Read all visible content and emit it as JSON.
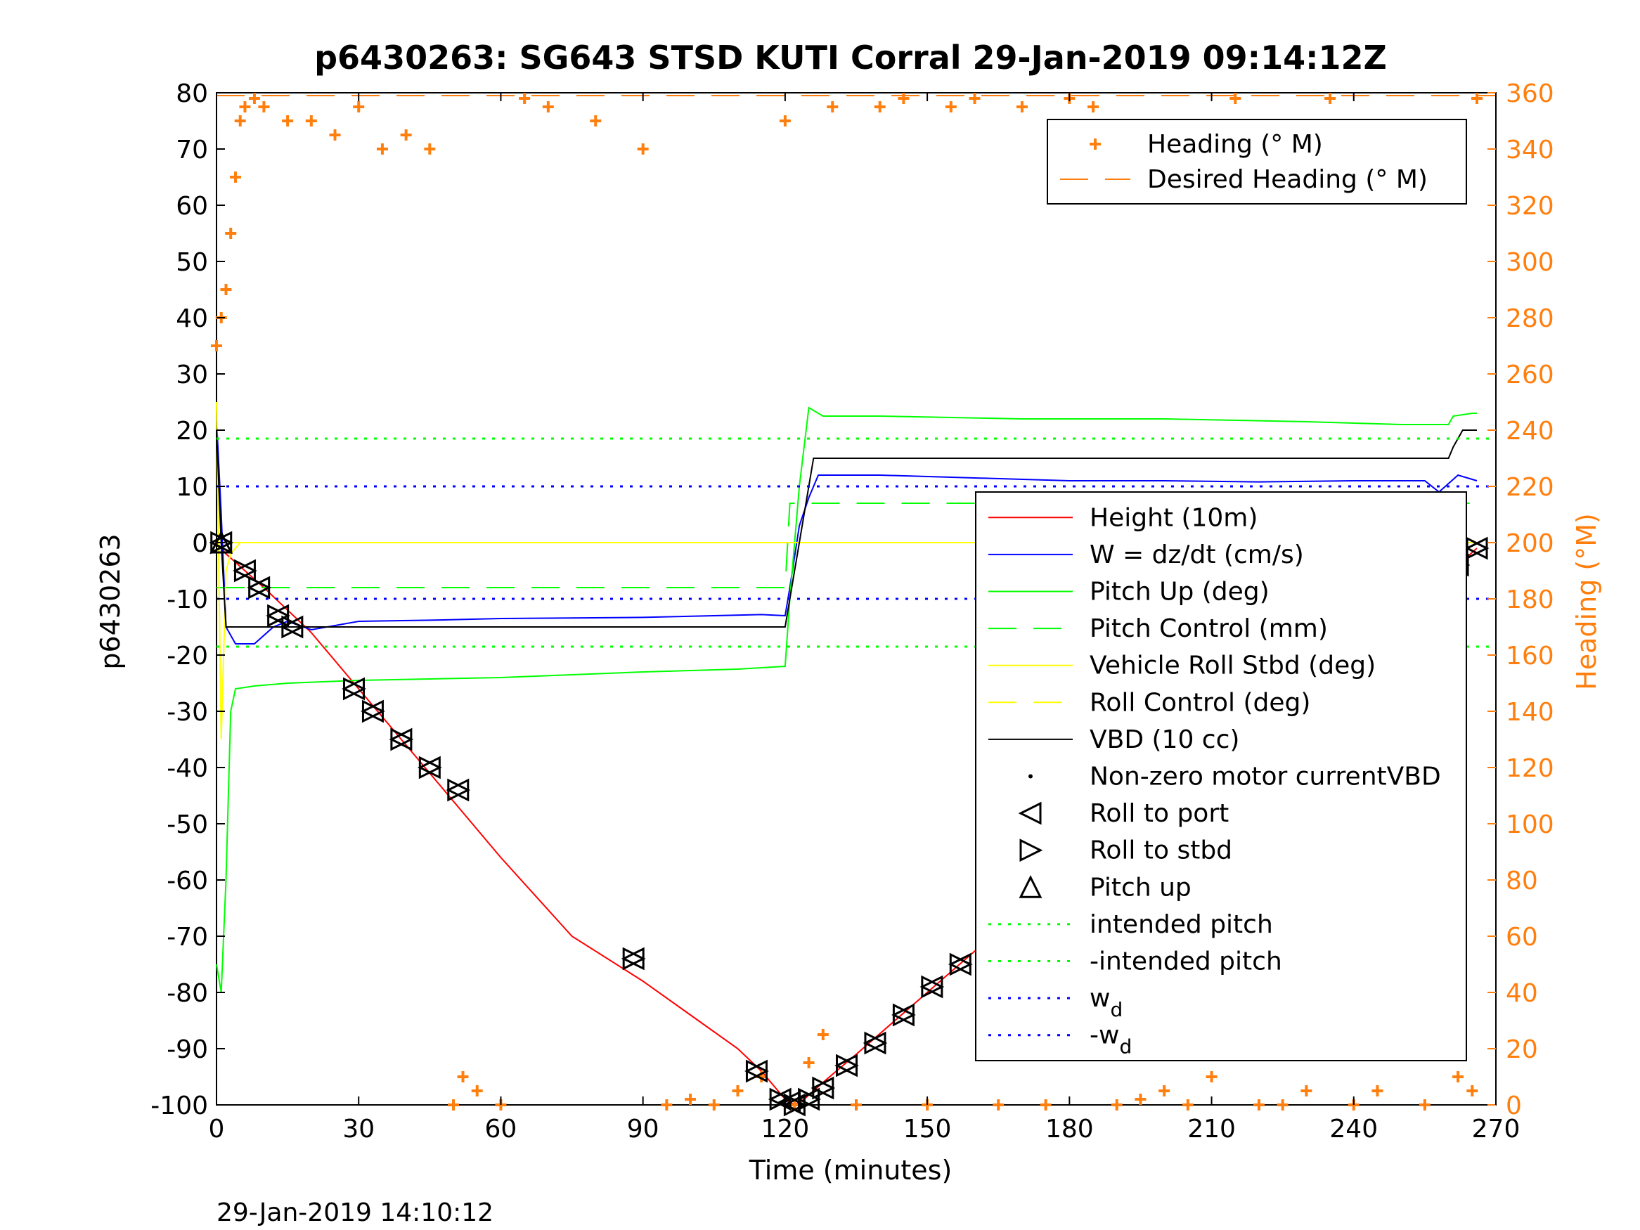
{
  "chart_data": {
    "type": "line",
    "title": "p6430263: SG643 STSD KUTI Corral 29-Jan-2019 09:14:12Z",
    "xlabel": "Time (minutes)",
    "ylabel": "p6430263",
    "ylabel_right": "Heading (°M)",
    "footer": "29-Jan-2019 14:10:12",
    "xlim": [
      0,
      270
    ],
    "ylim": [
      -100,
      80
    ],
    "ylim_right": [
      0,
      360
    ],
    "x_ticks": [
      "0",
      "30",
      "60",
      "90",
      "120",
      "150",
      "180",
      "210",
      "240",
      "270"
    ],
    "y_ticks": [
      "80",
      "70",
      "60",
      "50",
      "40",
      "30",
      "20",
      "10",
      "0",
      "-10",
      "-20",
      "-30",
      "-40",
      "-50",
      "-60",
      "-70",
      "-80",
      "-90",
      "-100"
    ],
    "y_right_ticks": [
      "360",
      "340",
      "320",
      "300",
      "280",
      "260",
      "240",
      "220",
      "200",
      "180",
      "160",
      "140",
      "120",
      "100",
      "80",
      "60",
      "40",
      "20",
      "0"
    ],
    "grid": true,
    "legend_top": {
      "placement": "top-right",
      "entries": [
        {
          "label": "Heading (° M)",
          "color": "#ff7f0e",
          "style": "plus"
        },
        {
          "label": "Desired Heading (° M)",
          "color": "#ff7f0e",
          "style": "dashed"
        }
      ]
    },
    "legend_main": {
      "placement": "right",
      "entries": [
        {
          "label": "Height (10m)",
          "color": "#ff0000",
          "style": "solid"
        },
        {
          "label": "W = dz/dt (cm/s)",
          "color": "#0000ff",
          "style": "solid"
        },
        {
          "label": "Pitch Up (deg)",
          "color": "#00ff00",
          "style": "solid"
        },
        {
          "label": "Pitch Control (mm)",
          "color": "#00ff00",
          "style": "dashed"
        },
        {
          "label": "Vehicle Roll Stbd (deg)",
          "color": "#ffff00",
          "style": "solid"
        },
        {
          "label": "Roll Control (deg)",
          "color": "#ffff00",
          "style": "dashed"
        },
        {
          "label": "VBD (10 cc)",
          "color": "#000000",
          "style": "solid"
        },
        {
          "label": "Non-zero motor currentVBD",
          "color": "#000000",
          "style": "dot"
        },
        {
          "label": "Roll to port",
          "color": "#000000",
          "style": "tri-left"
        },
        {
          "label": "Roll to stbd",
          "color": "#000000",
          "style": "tri-right"
        },
        {
          "label": "Pitch up",
          "color": "#000000",
          "style": "tri-up"
        },
        {
          "label": "intended pitch",
          "color": "#00ff00",
          "style": "dotted"
        },
        {
          "label": "-intended pitch",
          "color": "#00ff00",
          "style": "dotted"
        },
        {
          "label": "w",
          "sub": "d",
          "color": "#0000ff",
          "style": "dotted"
        },
        {
          "label": "-w",
          "sub": "d",
          "color": "#0000ff",
          "style": "dotted"
        }
      ]
    },
    "series": [
      {
        "name": "Height (10m)",
        "color": "#ff0000",
        "x": [
          0,
          2,
          10,
          20,
          30,
          45,
          60,
          75,
          90,
          100,
          110,
          115,
          118,
          120,
          122,
          124,
          128,
          135,
          150,
          165,
          180,
          195,
          210,
          225,
          240,
          255,
          262,
          266
        ],
        "y": [
          0,
          -2,
          -8,
          -16,
          -26,
          -41,
          -56,
          -70,
          -78,
          -84,
          -90,
          -94,
          -97,
          -99,
          -100,
          -99,
          -96,
          -91,
          -80,
          -69,
          -58,
          -47,
          -37,
          -27,
          -16,
          -8,
          -4,
          -1
        ]
      },
      {
        "name": "W = dz/dt (cm/s)",
        "color": "#0000ff",
        "x": [
          0,
          1,
          2,
          4,
          8,
          12,
          15,
          20,
          30,
          45,
          60,
          75,
          90,
          105,
          115,
          120,
          121,
          123,
          125,
          127,
          130,
          140,
          160,
          180,
          200,
          220,
          240,
          255,
          258,
          262,
          266
        ],
        "y": [
          22,
          5,
          -15,
          -18,
          -18,
          -15,
          -14,
          -15.5,
          -14,
          -13.8,
          -13.5,
          -13.4,
          -13.3,
          -13,
          -12.8,
          -13,
          -8,
          3,
          8,
          12,
          12,
          12,
          11.5,
          11,
          11,
          10.8,
          11,
          11,
          9,
          12,
          11
        ]
      },
      {
        "name": "Pitch Up (deg)",
        "color": "#00ff00",
        "x": [
          0,
          1,
          2,
          3,
          4,
          8,
          15,
          30,
          60,
          90,
          110,
          120,
          121,
          123,
          125,
          128,
          140,
          170,
          200,
          230,
          250,
          260,
          261,
          265,
          266
        ],
        "y": [
          -75,
          -80,
          -60,
          -30,
          -26,
          -25.5,
          -25,
          -24.5,
          -24,
          -23,
          -22.5,
          -22,
          -10,
          10,
          24,
          22.5,
          22.5,
          22,
          22,
          21.5,
          21,
          21,
          22.5,
          23,
          23
        ]
      },
      {
        "name": "Pitch Control (mm)",
        "color": "#00ff00",
        "x": [
          0,
          120,
          121,
          266
        ],
        "y": [
          -8,
          -8,
          7,
          7
        ]
      },
      {
        "name": "Vehicle Roll Stbd (deg)",
        "color": "#ffff00",
        "x": [
          0,
          1,
          2,
          3,
          5,
          10,
          20,
          30,
          60,
          90,
          120,
          125,
          140,
          170,
          200,
          230,
          250,
          266
        ],
        "y": [
          25,
          -35,
          -5,
          -2,
          0,
          0,
          0,
          0,
          0,
          0,
          0,
          0,
          0,
          0,
          0,
          0,
          0,
          0
        ]
      },
      {
        "name": "Roll Control (deg)",
        "color": "#ffff00",
        "x": [
          0,
          266
        ],
        "y": [
          0,
          0
        ]
      },
      {
        "name": "VBD (10 cc)",
        "color": "#000000",
        "x": [
          0,
          1,
          2,
          3,
          10,
          60,
          120,
          121,
          126,
          127,
          160,
          200,
          240,
          260,
          261,
          263,
          266
        ],
        "y": [
          20,
          0,
          -15,
          -15,
          -15,
          -15,
          -15,
          -10,
          15,
          15,
          15,
          15,
          15,
          15,
          17,
          20,
          20
        ]
      },
      {
        "name": "intended pitch",
        "color": "#00ff00",
        "x": [
          0,
          270
        ],
        "y": [
          18.5,
          18.5
        ]
      },
      {
        "name": "-intended pitch",
        "color": "#00ff00",
        "x": [
          0,
          270
        ],
        "y": [
          -18.5,
          -18.5
        ]
      },
      {
        "name": "w",
        "color": "#0000ff",
        "x": [
          0,
          270
        ],
        "y": [
          10,
          10
        ]
      },
      {
        "name": "-w",
        "color": "#0000ff",
        "x": [
          0,
          270
        ],
        "y": [
          -10,
          -10
        ]
      },
      {
        "name": "Heading (° M)",
        "color": "#ff7f0e",
        "axis": "right",
        "x": [
          0,
          1,
          2,
          3,
          4,
          5,
          6,
          8,
          10,
          15,
          20,
          25,
          30,
          35,
          40,
          45,
          50,
          52,
          55,
          60,
          65,
          70,
          80,
          90,
          95,
          100,
          105,
          110,
          115,
          120,
          122,
          125,
          128,
          130,
          135,
          140,
          145,
          150,
          155,
          160,
          165,
          170,
          175,
          180,
          185,
          190,
          195,
          200,
          205,
          210,
          215,
          220,
          225,
          230,
          235,
          240,
          245,
          250,
          255,
          260,
          262,
          265,
          266
        ],
        "y": [
          270,
          280,
          290,
          310,
          330,
          350,
          355,
          358,
          355,
          350,
          350,
          345,
          355,
          340,
          345,
          340,
          0,
          10,
          5,
          0,
          358,
          355,
          350,
          340,
          0,
          2,
          0,
          5,
          10,
          350,
          0,
          15,
          25,
          355,
          0,
          355,
          358,
          0,
          355,
          358,
          0,
          355,
          0,
          358,
          355,
          0,
          2,
          5,
          0,
          10,
          358,
          0,
          0,
          5,
          358,
          0,
          5,
          25,
          0,
          330,
          10,
          5,
          358
        ]
      },
      {
        "name": "Desired Heading (° M)",
        "color": "#ff7f0e",
        "axis": "right",
        "x": [
          0,
          270
        ],
        "y": [
          359,
          359
        ]
      },
      {
        "name": "Roll to port",
        "color": "#000000",
        "style": "tri-left",
        "x": [
          1,
          6,
          9,
          13,
          16,
          29,
          33,
          39,
          45,
          51,
          88,
          114,
          119,
          121,
          122,
          125,
          128,
          133,
          139,
          145,
          151,
          157,
          163,
          169,
          175,
          182,
          188,
          199,
          211,
          217,
          223,
          234,
          240,
          250,
          255,
          259,
          262,
          266
        ],
        "y": [
          0,
          -5,
          -8,
          -13,
          -15,
          -26,
          -30,
          -35,
          -40,
          -44,
          -74,
          -94,
          -99,
          -99.5,
          -100,
          -99,
          -97,
          -93,
          -89,
          -84,
          -79,
          -75,
          -70,
          -66,
          -62,
          -58,
          -54,
          -46,
          -38,
          -34,
          -29,
          -22,
          -18,
          -12,
          -8,
          -6,
          -4,
          -1
        ]
      },
      {
        "name": "Roll to stbd",
        "color": "#000000",
        "style": "tri-right",
        "x": [
          1,
          6,
          9,
          13,
          16,
          29,
          33,
          39,
          45,
          51,
          88,
          114,
          119,
          122,
          125,
          128,
          133,
          139,
          145,
          151,
          157,
          163,
          169,
          175,
          182,
          188,
          199,
          211,
          217,
          223,
          234,
          240,
          250,
          255,
          259,
          262,
          266
        ],
        "y": [
          0,
          -5,
          -8,
          -13,
          -15,
          -26,
          -30,
          -35,
          -40,
          -44,
          -74,
          -94,
          -99,
          -100,
          -99,
          -97,
          -93,
          -89,
          -84,
          -79,
          -75,
          -70,
          -66,
          -62,
          -58,
          -54,
          -46,
          -38,
          -34,
          -29,
          -22,
          -18,
          -12,
          -8,
          -6,
          -4,
          -1
        ]
      },
      {
        "name": "Pitch up",
        "color": "#000000",
        "style": "tri-up",
        "x": [
          1
        ],
        "y": [
          0
        ]
      }
    ]
  }
}
